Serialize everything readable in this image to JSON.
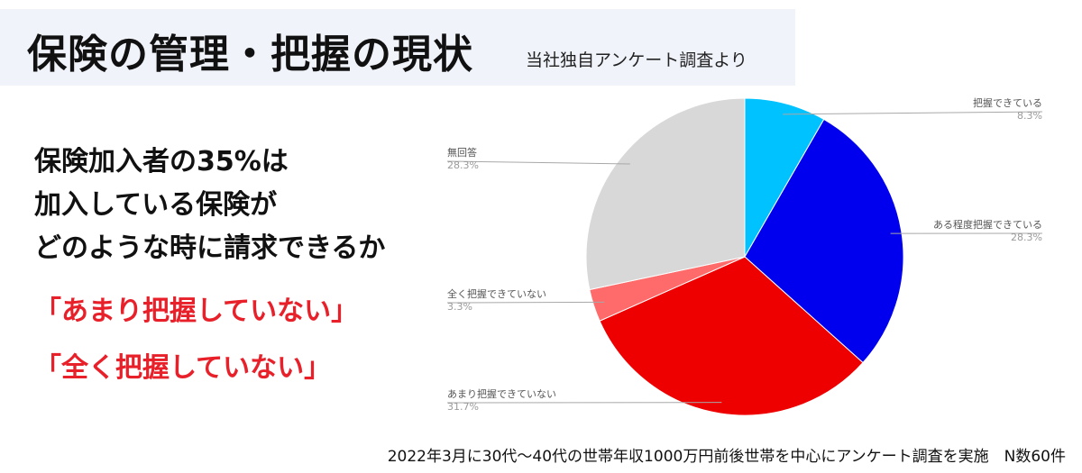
{
  "header": {
    "title": "保険の管理・把握の現状",
    "subtitle": "当社独自アンケート調査より"
  },
  "lead_lines": [
    "保険加入者の35%は",
    "加入している保険が",
    "どのような時に請求できるか"
  ],
  "quotes": [
    "「あまり把握していない」",
    "「全く把握していない」"
  ],
  "footnote": "2022年3月に30代〜40代の世帯年収1000万円前後世帯を中心にアンケート調査を実施　N数60件",
  "chart_data": {
    "type": "pie",
    "start_angle_deg": 0,
    "direction": "clockwise",
    "slices": [
      {
        "label": "把握できている",
        "value": 8.3,
        "value_label": "8.3%",
        "color": "#00c2ff",
        "label_side": "right"
      },
      {
        "label": "ある程度把握できている",
        "value": 28.3,
        "value_label": "28.3%",
        "color": "#0000ee",
        "label_side": "right"
      },
      {
        "label": "あまり把握できていない",
        "value": 31.7,
        "value_label": "31.7%",
        "color": "#ee0000",
        "label_side": "left"
      },
      {
        "label": "全く把握できていない",
        "value": 3.3,
        "value_label": "3.3%",
        "color": "#ff6b6b",
        "label_side": "left"
      },
      {
        "label": "無回答",
        "value": 28.3,
        "value_label": "28.3%",
        "color": "#d8d8d8",
        "label_side": "left"
      }
    ]
  }
}
